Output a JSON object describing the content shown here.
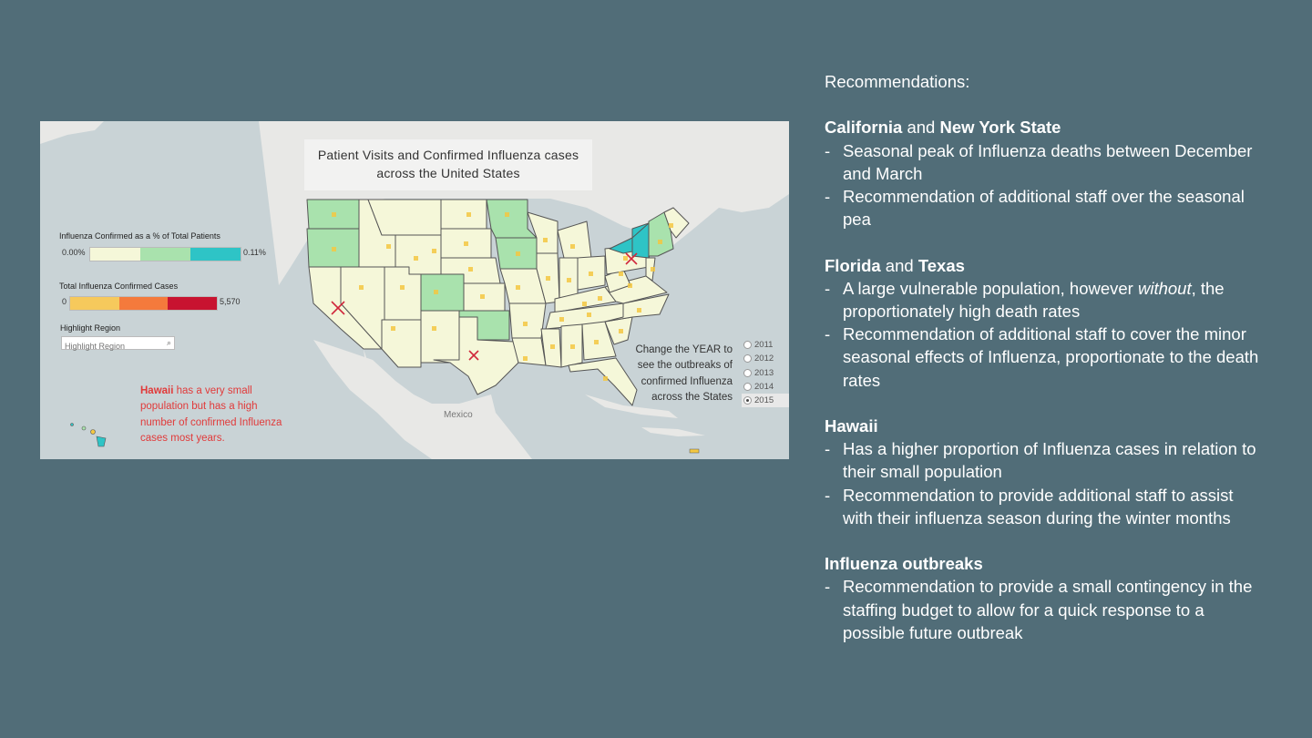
{
  "dashboard": {
    "title_line1": "Patient Visits and Confirmed Influenza cases",
    "title_line2": "across the United States",
    "legend_percent": {
      "label": "Influenza Confirmed as a % of Total Patients",
      "min": "0.00%",
      "max": "0.11%",
      "colors": [
        "#f5f7d9",
        "#a9e2ad",
        "#2ec4c6"
      ]
    },
    "legend_cases": {
      "label": "Total Influenza Confirmed Cases",
      "min": "0",
      "max": "5,570",
      "colors": [
        "#f6c95c",
        "#f47a3c",
        "#c81330"
      ]
    },
    "highlight": {
      "label": "Highlight Region",
      "placeholder": "Highlight Region",
      "icon": "search-icon"
    },
    "hawaii_note": {
      "name": "Hawaii",
      "rest": " has a very small population but has a high number of confirmed Influenza cases most years."
    },
    "year_note": "Change the YEAR to see the outbreaks of confirmed Influenza across the States",
    "years": [
      "2011",
      "2012",
      "2013",
      "2014",
      "2015"
    ],
    "selected_year": "2015",
    "map_label": "Mexico",
    "colors": {
      "map_land": "#e8e8e6",
      "map_water": "#c9d3d6",
      "state_low": "#f5f7d9",
      "state_mid": "#a9e2ad",
      "state_high": "#2ec4c6",
      "marker_x": "#d0283c"
    }
  },
  "recommendations": {
    "heading": "Recommendations:",
    "sections": [
      {
        "title": [
          {
            "text": "California",
            "bold": true
          },
          {
            "text": " and ",
            "bold": false
          },
          {
            "text": "New York State",
            "bold": true
          }
        ],
        "bullets": [
          "Seasonal peak of Influenza deaths between December and March",
          "Recommendation of additional staff over the seasonal pea"
        ]
      },
      {
        "title": [
          {
            "text": "Florida",
            "bold": true
          },
          {
            "text": " and ",
            "bold": false
          },
          {
            "text": "Texas",
            "bold": true
          }
        ],
        "bullets": [
          {
            "before": "A large vulnerable population, however ",
            "italic": "without",
            "after": ", the proportionately high death rates"
          },
          "Recommendation of additional staff to cover the minor seasonal effects of Influenza, proportionate to the death rates"
        ]
      },
      {
        "title": [
          {
            "text": "Hawaii",
            "bold": true
          }
        ],
        "bullets": [
          "Has a higher proportion of Influenza cases in relation to their small population",
          "Recommendation to provide additional staff to assist with their influenza season during the winter months"
        ]
      },
      {
        "title": [
          {
            "text": "Influenza outbreaks",
            "bold": true
          }
        ],
        "bullets": [
          "Recommendation to provide a small contingency in the staffing budget to allow for a quick response to a possible future outbreak"
        ]
      }
    ]
  }
}
